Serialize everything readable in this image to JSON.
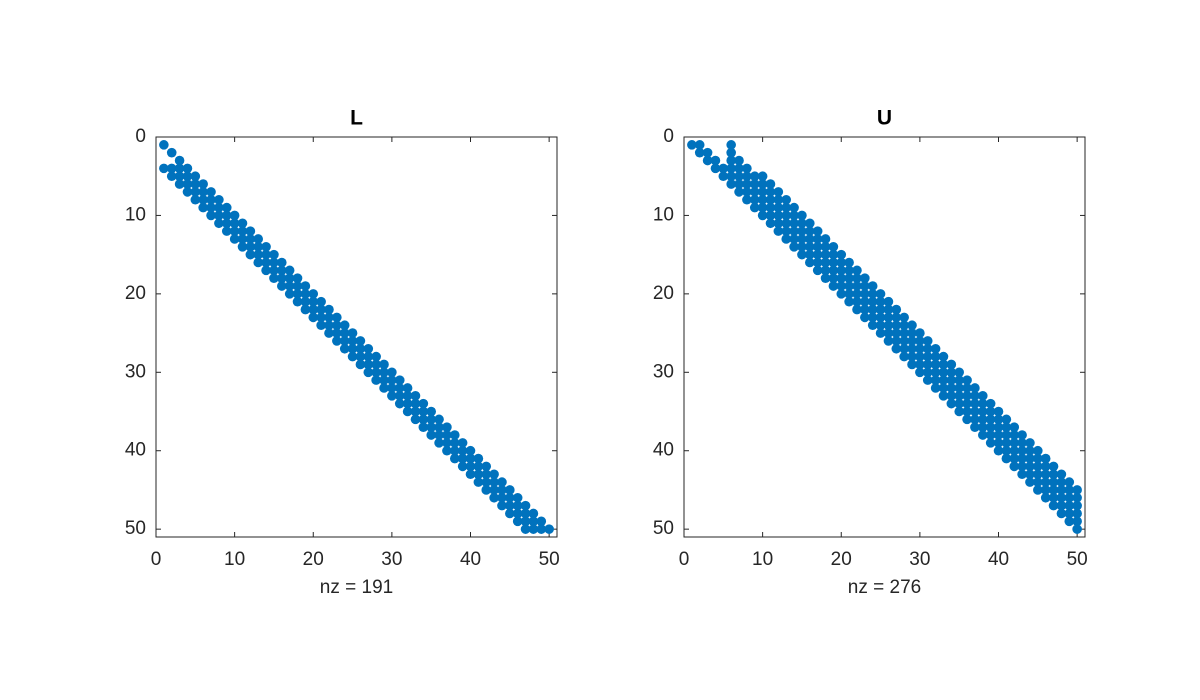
{
  "chart_data": [
    {
      "type": "scatter",
      "title": "L",
      "xlabel": "nz = 191",
      "color": "#0072bd",
      "ydir": "reverse",
      "box": true,
      "xlim": [
        0,
        51
      ],
      "ylim": [
        0,
        51
      ],
      "xticks": [
        0,
        10,
        20,
        30,
        40,
        50
      ],
      "yticks": [
        0,
        10,
        20,
        30,
        40,
        50
      ],
      "x": [
        1,
        2,
        3,
        1,
        2,
        3,
        4,
        2,
        3,
        4,
        5,
        3,
        4,
        5,
        6,
        4,
        5,
        6,
        7,
        5,
        6,
        7,
        8,
        6,
        7,
        8,
        9,
        7,
        8,
        9,
        10,
        8,
        9,
        10,
        11,
        9,
        10,
        11,
        12,
        10,
        11,
        12,
        13,
        11,
        12,
        13,
        14,
        12,
        13,
        14,
        15,
        13,
        14,
        15,
        16,
        14,
        15,
        16,
        17,
        15,
        16,
        17,
        18,
        16,
        17,
        18,
        19,
        17,
        18,
        19,
        20,
        18,
        19,
        20,
        21,
        19,
        20,
        21,
        22,
        20,
        21,
        22,
        23,
        21,
        22,
        23,
        24,
        22,
        23,
        24,
        25,
        23,
        24,
        25,
        26,
        24,
        25,
        26,
        27,
        25,
        26,
        27,
        28,
        26,
        27,
        28,
        29,
        27,
        28,
        29,
        30,
        28,
        29,
        30,
        31,
        29,
        30,
        31,
        32,
        30,
        31,
        32,
        33,
        31,
        32,
        33,
        34,
        32,
        33,
        34,
        35,
        33,
        34,
        35,
        36,
        34,
        35,
        36,
        37,
        35,
        36,
        37,
        38,
        36,
        37,
        38,
        39,
        37,
        38,
        39,
        40,
        38,
        39,
        40,
        41,
        39,
        40,
        41,
        42,
        40,
        41,
        42,
        43,
        41,
        42,
        43,
        44,
        42,
        43,
        44,
        45,
        43,
        44,
        45,
        46,
        44,
        45,
        46,
        47,
        45,
        46,
        47,
        48,
        46,
        47,
        48,
        49,
        47,
        48,
        49,
        50
      ],
      "y": [
        1,
        2,
        3,
        4,
        4,
        4,
        4,
        5,
        5,
        5,
        5,
        6,
        6,
        6,
        6,
        7,
        7,
        7,
        7,
        8,
        8,
        8,
        8,
        9,
        9,
        9,
        9,
        10,
        10,
        10,
        10,
        11,
        11,
        11,
        11,
        12,
        12,
        12,
        12,
        13,
        13,
        13,
        13,
        14,
        14,
        14,
        14,
        15,
        15,
        15,
        15,
        16,
        16,
        16,
        16,
        17,
        17,
        17,
        17,
        18,
        18,
        18,
        18,
        19,
        19,
        19,
        19,
        20,
        20,
        20,
        20,
        21,
        21,
        21,
        21,
        22,
        22,
        22,
        22,
        23,
        23,
        23,
        23,
        24,
        24,
        24,
        24,
        25,
        25,
        25,
        25,
        26,
        26,
        26,
        26,
        27,
        27,
        27,
        27,
        28,
        28,
        28,
        28,
        29,
        29,
        29,
        29,
        30,
        30,
        30,
        30,
        31,
        31,
        31,
        31,
        32,
        32,
        32,
        32,
        33,
        33,
        33,
        33,
        34,
        34,
        34,
        34,
        35,
        35,
        35,
        35,
        36,
        36,
        36,
        36,
        37,
        37,
        37,
        37,
        38,
        38,
        38,
        38,
        39,
        39,
        39,
        39,
        40,
        40,
        40,
        40,
        41,
        41,
        41,
        41,
        42,
        42,
        42,
        42,
        43,
        43,
        43,
        43,
        44,
        44,
        44,
        44,
        45,
        45,
        45,
        45,
        46,
        46,
        46,
        46,
        47,
        47,
        47,
        47,
        48,
        48,
        48,
        48,
        49,
        49,
        49,
        49,
        50,
        50,
        50,
        50
      ]
    },
    {
      "type": "scatter",
      "title": "U",
      "xlabel": "nz = 276",
      "color": "#0072bd",
      "ydir": "reverse",
      "box": true,
      "xlim": [
        0,
        51
      ],
      "ylim": [
        0,
        51
      ],
      "xticks": [
        0,
        10,
        20,
        30,
        40,
        50
      ],
      "yticks": [
        0,
        10,
        20,
        30,
        40,
        50
      ],
      "x": [
        1,
        2,
        6,
        2,
        3,
        6,
        3,
        4,
        6,
        7,
        4,
        5,
        6,
        7,
        8,
        5,
        6,
        7,
        8,
        9,
        10,
        6,
        7,
        8,
        9,
        10,
        11,
        7,
        8,
        9,
        10,
        11,
        12,
        8,
        9,
        10,
        11,
        12,
        13,
        9,
        10,
        11,
        12,
        13,
        14,
        10,
        11,
        12,
        13,
        14,
        15,
        11,
        12,
        13,
        14,
        15,
        16,
        12,
        13,
        14,
        15,
        16,
        17,
        13,
        14,
        15,
        16,
        17,
        18,
        14,
        15,
        16,
        17,
        18,
        19,
        15,
        16,
        17,
        18,
        19,
        20,
        16,
        17,
        18,
        19,
        20,
        21,
        17,
        18,
        19,
        20,
        21,
        22,
        18,
        19,
        20,
        21,
        22,
        23,
        19,
        20,
        21,
        22,
        23,
        24,
        20,
        21,
        22,
        23,
        24,
        25,
        21,
        22,
        23,
        24,
        25,
        26,
        22,
        23,
        24,
        25,
        26,
        27,
        23,
        24,
        25,
        26,
        27,
        28,
        24,
        25,
        26,
        27,
        28,
        29,
        25,
        26,
        27,
        28,
        29,
        30,
        26,
        27,
        28,
        29,
        30,
        31,
        27,
        28,
        29,
        30,
        31,
        32,
        28,
        29,
        30,
        31,
        32,
        33,
        29,
        30,
        31,
        32,
        33,
        34,
        30,
        31,
        32,
        33,
        34,
        35,
        31,
        32,
        33,
        34,
        35,
        36,
        32,
        33,
        34,
        35,
        36,
        37,
        33,
        34,
        35,
        36,
        37,
        38,
        34,
        35,
        36,
        37,
        38,
        39,
        35,
        36,
        37,
        38,
        39,
        40,
        36,
        37,
        38,
        39,
        40,
        41,
        37,
        38,
        39,
        40,
        41,
        42,
        38,
        39,
        40,
        41,
        42,
        43,
        39,
        40,
        41,
        42,
        43,
        44,
        40,
        41,
        42,
        43,
        44,
        45,
        41,
        42,
        43,
        44,
        45,
        46,
        42,
        43,
        44,
        45,
        46,
        47,
        43,
        44,
        45,
        46,
        47,
        48,
        44,
        45,
        46,
        47,
        48,
        49,
        45,
        46,
        47,
        48,
        49,
        50,
        46,
        47,
        48,
        49,
        50,
        47,
        48,
        49,
        50,
        48,
        49,
        50,
        49,
        50,
        50
      ],
      "y": [
        1,
        1,
        1,
        2,
        2,
        2,
        3,
        3,
        3,
        3,
        4,
        4,
        4,
        4,
        4,
        5,
        5,
        5,
        5,
        5,
        5,
        6,
        6,
        6,
        6,
        6,
        6,
        7,
        7,
        7,
        7,
        7,
        7,
        8,
        8,
        8,
        8,
        8,
        8,
        9,
        9,
        9,
        9,
        9,
        9,
        10,
        10,
        10,
        10,
        10,
        10,
        11,
        11,
        11,
        11,
        11,
        11,
        12,
        12,
        12,
        12,
        12,
        12,
        13,
        13,
        13,
        13,
        13,
        13,
        14,
        14,
        14,
        14,
        14,
        14,
        15,
        15,
        15,
        15,
        15,
        15,
        16,
        16,
        16,
        16,
        16,
        16,
        17,
        17,
        17,
        17,
        17,
        17,
        18,
        18,
        18,
        18,
        18,
        18,
        19,
        19,
        19,
        19,
        19,
        19,
        20,
        20,
        20,
        20,
        20,
        20,
        21,
        21,
        21,
        21,
        21,
        21,
        22,
        22,
        22,
        22,
        22,
        22,
        23,
        23,
        23,
        23,
        23,
        23,
        24,
        24,
        24,
        24,
        24,
        24,
        25,
        25,
        25,
        25,
        25,
        25,
        26,
        26,
        26,
        26,
        26,
        26,
        27,
        27,
        27,
        27,
        27,
        27,
        28,
        28,
        28,
        28,
        28,
        28,
        29,
        29,
        29,
        29,
        29,
        29,
        30,
        30,
        30,
        30,
        30,
        30,
        31,
        31,
        31,
        31,
        31,
        31,
        32,
        32,
        32,
        32,
        32,
        32,
        33,
        33,
        33,
        33,
        33,
        33,
        34,
        34,
        34,
        34,
        34,
        34,
        35,
        35,
        35,
        35,
        35,
        35,
        36,
        36,
        36,
        36,
        36,
        36,
        37,
        37,
        37,
        37,
        37,
        37,
        38,
        38,
        38,
        38,
        38,
        38,
        39,
        39,
        39,
        39,
        39,
        39,
        40,
        40,
        40,
        40,
        40,
        40,
        41,
        41,
        41,
        41,
        41,
        41,
        42,
        42,
        42,
        42,
        42,
        42,
        43,
        43,
        43,
        43,
        43,
        43,
        44,
        44,
        44,
        44,
        44,
        44,
        45,
        45,
        45,
        45,
        45,
        45,
        46,
        46,
        46,
        46,
        46,
        47,
        47,
        47,
        47,
        48,
        48,
        48,
        49,
        49,
        50
      ]
    }
  ]
}
